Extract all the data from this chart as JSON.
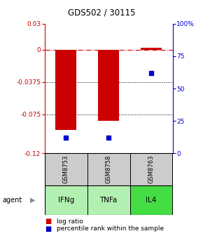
{
  "title": "GDS502 / 30115",
  "samples": [
    "GSM8753",
    "GSM8758",
    "GSM8763"
  ],
  "agents": [
    "IFNg",
    "TNFa",
    "IL4"
  ],
  "log_ratios": [
    -0.093,
    -0.082,
    0.002
  ],
  "percentile_ranks": [
    12,
    12,
    62
  ],
  "ylim_left": [
    -0.12,
    0.03
  ],
  "ylim_right": [
    0,
    100
  ],
  "yticks_left": [
    0.03,
    0,
    -0.0375,
    -0.075,
    -0.12
  ],
  "yticks_right": [
    100,
    75,
    50,
    25,
    0
  ],
  "ytick_labels_left": [
    "0.03",
    "0",
    "-0.0375",
    "-0.075",
    "-0.12"
  ],
  "ytick_labels_right": [
    "100%",
    "75",
    "50",
    "25",
    "0"
  ],
  "bar_color": "#cc0000",
  "point_color": "#0000cc",
  "agent_bg_color_light": "#b2f0b2",
  "agent_bg_color_dark": "#44cc44",
  "sample_bg_color": "#cccccc",
  "legend_log_color": "#cc0000",
  "legend_pct_color": "#0000cc",
  "zero_line_color": "#cc0000",
  "grid_color": "#000000",
  "bar_width": 0.5,
  "agent_colors": [
    "#b2f0b2",
    "#b2f0b2",
    "#44dd44"
  ]
}
